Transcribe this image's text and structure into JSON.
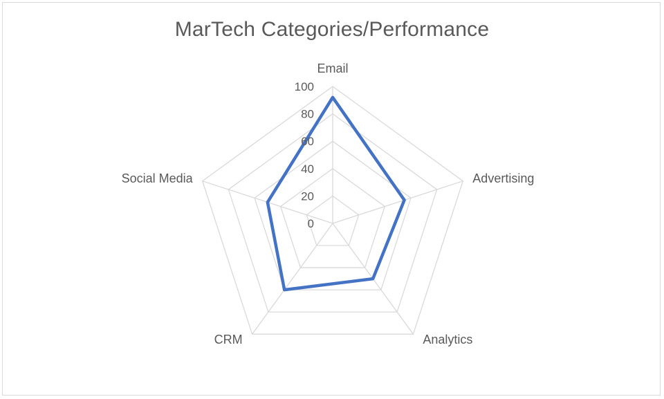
{
  "chart_data": {
    "type": "radar",
    "title": "MarTech Categories/Performance",
    "categories": [
      "Email",
      "Advertising",
      "Analytics",
      "CRM",
      "Social Media"
    ],
    "series": [
      {
        "values": [
          92,
          55,
          50,
          60,
          50
        ],
        "color": "#4472c4"
      }
    ],
    "rlim": [
      0,
      100
    ],
    "ticks": [
      "0",
      "20",
      "40",
      "60",
      "80",
      "100"
    ],
    "grid": true,
    "legend": "none"
  }
}
